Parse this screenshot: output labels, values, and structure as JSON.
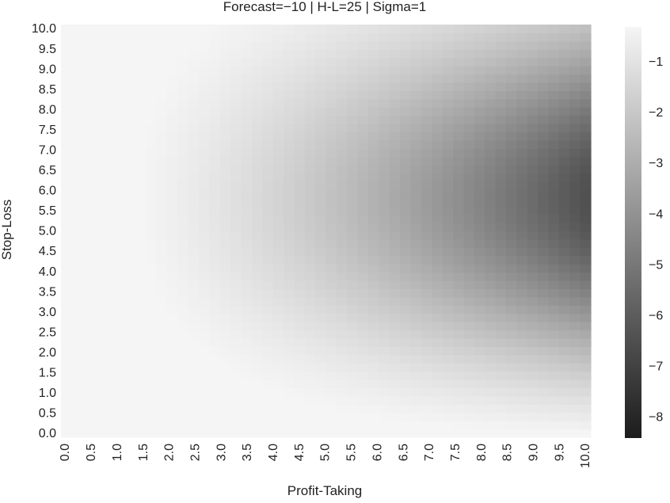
{
  "chart_data": {
    "type": "heatmap",
    "title": "Forecast=−10 | H-L=25 | Sigma=1",
    "xlabel": "Profit-Taking",
    "ylabel": "Stop-Loss",
    "x_ticks": [
      "0.0",
      "0.5",
      "1.0",
      "1.5",
      "2.0",
      "2.5",
      "3.0",
      "3.5",
      "4.0",
      "4.5",
      "5.0",
      "5.5",
      "6.0",
      "6.5",
      "7.0",
      "7.5",
      "8.0",
      "8.5",
      "9.0",
      "9.5",
      "10.0"
    ],
    "y_ticks": [
      "0.0",
      "0.5",
      "1.0",
      "1.5",
      "2.0",
      "2.5",
      "3.0",
      "3.5",
      "4.0",
      "4.5",
      "5.0",
      "5.5",
      "6.0",
      "6.5",
      "7.0",
      "7.5",
      "8.0",
      "8.5",
      "9.0",
      "9.5",
      "10.0"
    ],
    "x_range": [
      0,
      10
    ],
    "y_range": [
      0,
      10
    ],
    "grid_resolution": 0.2,
    "value_surface": "-8.3 * (x/10)^1.6 * (y/10)^0.4 * exp(-((y-5.2)/4.2)^2); approximate reading of the grayscale heatmap",
    "colorbar": {
      "colormap": "grayscale",
      "min_color": "#1c1c1c",
      "max_color": "#f5f5f5",
      "range": [
        -8.4,
        -0.3
      ],
      "ticks": [
        "−1",
        "−2",
        "−3",
        "−4",
        "−5",
        "−6",
        "−7",
        "−8"
      ],
      "tick_values": [
        -1,
        -2,
        -3,
        -4,
        -5,
        -6,
        -7,
        -8
      ]
    }
  }
}
